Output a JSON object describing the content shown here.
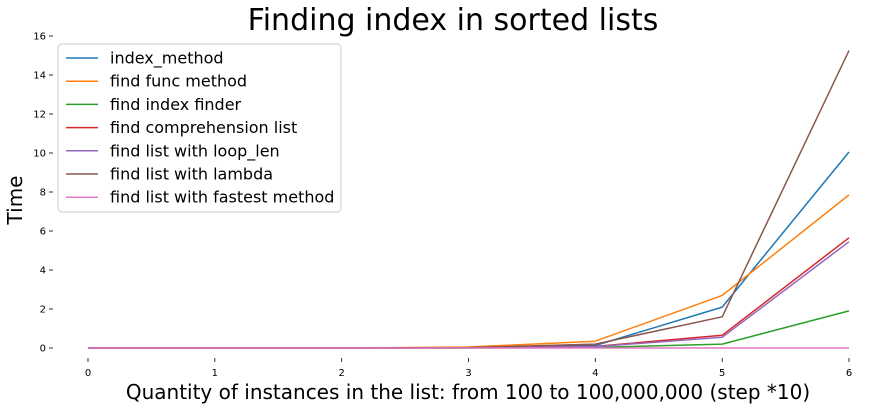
{
  "chart_data": {
    "type": "line",
    "title": "Finding index in sorted lists",
    "xlabel": "Quantity of instances in the list: from 100 to 100,000,000 (step *10)",
    "ylabel": "Time",
    "x": [
      0,
      1,
      2,
      3,
      4,
      5,
      6
    ],
    "xlim": [
      0,
      6
    ],
    "ylim": [
      0,
      16
    ],
    "xticks": [
      0,
      1,
      2,
      3,
      4,
      5,
      6
    ],
    "yticks": [
      0,
      2,
      4,
      6,
      8,
      10,
      12,
      14,
      16
    ],
    "grid": false,
    "legend_position": "top-left",
    "series": [
      {
        "name": "index_method",
        "color": "#1f77b4",
        "values": [
          0,
          0,
          0,
          0.01,
          0.13,
          2.1,
          10.05
        ]
      },
      {
        "name": "find func method",
        "color": "#ff7f0e",
        "values": [
          0,
          0,
          0,
          0.05,
          0.35,
          2.7,
          7.85
        ]
      },
      {
        "name": "find index finder",
        "color": "#2ca02c",
        "values": [
          0,
          0,
          0,
          0,
          0.03,
          0.2,
          1.9
        ]
      },
      {
        "name": "find comprehension list",
        "color": "#d62728",
        "values": [
          0,
          0,
          0,
          0.01,
          0.08,
          0.65,
          5.65
        ]
      },
      {
        "name": "find list with loop_len",
        "color": "#9467bd",
        "values": [
          0,
          0,
          0,
          0.01,
          0.07,
          0.55,
          5.45
        ]
      },
      {
        "name": "find list with lambda",
        "color": "#8c564b",
        "values": [
          0,
          0,
          0,
          0.02,
          0.2,
          1.6,
          15.25
        ]
      },
      {
        "name": "find list with fastest method",
        "color": "#e377c2",
        "values": [
          0,
          0,
          0,
          0,
          0,
          0,
          0
        ]
      }
    ]
  }
}
